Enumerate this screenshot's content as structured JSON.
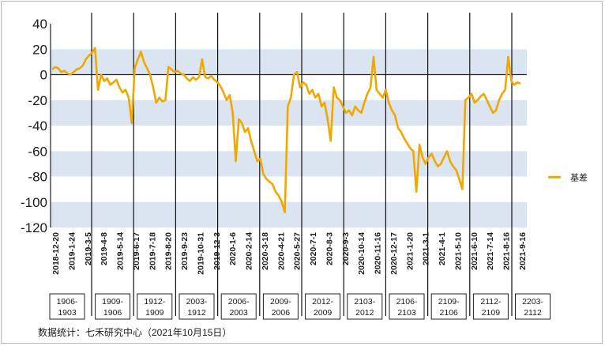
{
  "chart_data": {
    "type": "line",
    "ylim": [
      -120,
      40
    ],
    "yticks": [
      "40",
      "20",
      "0",
      "-20",
      "-40",
      "-60",
      "-80",
      "-100",
      "-120"
    ],
    "x_tick_labels": [
      "2018-12-20",
      "2019-1-24",
      "2019-3-5",
      "2019-4-8",
      "2019-5-14",
      "2019-6-17",
      "2019-7-18",
      "2019-8-20",
      "2019-9-23",
      "2019-10-31",
      "2019-12-3",
      "2020-1-6",
      "2020-2-14",
      "2020-3-18",
      "2020-4-21",
      "2020-5-27",
      "2020-7-1",
      "2020-8-3",
      "2020-9-3",
      "2020-10-14",
      "2020-11-16",
      "2020-12-17",
      "2021-1-20",
      "2021-3-1",
      "2021-4-1",
      "2021-5-10",
      "2021-6-10",
      "2021-7-14",
      "2021-8-16",
      "2021-9-16"
    ],
    "contracts": [
      "1906-1903",
      "1909-1906",
      "1912-1909",
      "2003-1912",
      "2006-2003",
      "2009-2006",
      "2012-2009",
      "2103-2012",
      "2106-2103",
      "2109-2106",
      "2112-2109",
      "2203-2112"
    ],
    "series": [
      {
        "name": "基差",
        "color": "#f0a800",
        "values": [
          4,
          6,
          5,
          2,
          3,
          1,
          0,
          2,
          4,
          5,
          7,
          12,
          15,
          17,
          21,
          -12,
          0,
          -5,
          -3,
          -8,
          -6,
          -4,
          -10,
          -14,
          -12,
          -18,
          -38,
          5,
          12,
          18,
          10,
          5,
          0,
          -10,
          -22,
          -18,
          -21,
          -20,
          6,
          4,
          2,
          3,
          1,
          0,
          -3,
          -5,
          -2,
          -4,
          -2,
          12,
          -2,
          -3,
          -1,
          -4,
          -6,
          -9,
          -14,
          -20,
          -16,
          -30,
          -68,
          -35,
          -38,
          -45,
          -42,
          -52,
          -60,
          -68,
          -66,
          -78,
          -82,
          -84,
          -86,
          -92,
          -95,
          -100,
          -108,
          -25,
          -18,
          0,
          2,
          -10,
          -6,
          -8,
          -15,
          -12,
          -18,
          -15,
          -25,
          -22,
          -35,
          -52,
          -10,
          -18,
          -20,
          -25,
          -30,
          -28,
          -32,
          -25,
          -28,
          -30,
          -22,
          -15,
          -10,
          14,
          -12,
          -15,
          -18,
          -12,
          -22,
          -28,
          -32,
          -42,
          -45,
          -50,
          -54,
          -58,
          -60,
          -92,
          -55,
          -65,
          -70,
          -65,
          -62,
          -68,
          -72,
          -70,
          -65,
          -60,
          -68,
          -72,
          -75,
          -82,
          -90,
          -20,
          -18,
          -15,
          -22,
          -20,
          -17,
          -15,
          -20,
          -25,
          -30,
          -28,
          -20,
          -15,
          -12,
          14,
          -5,
          -8,
          -6,
          -7
        ]
      }
    ],
    "legend": {
      "position": "right",
      "labels": [
        "基差"
      ]
    },
    "grid": "horizontal bands"
  },
  "footnote": "数据统计：七禾研究中心（2021年10月15日）"
}
